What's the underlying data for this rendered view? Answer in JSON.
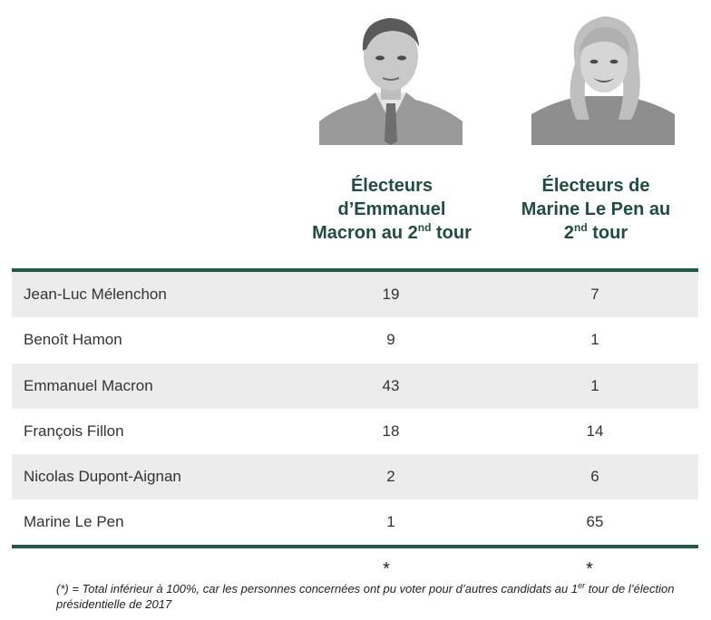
{
  "chart_data": {
    "type": "table",
    "columns": [
      {
        "line1": "Électeurs",
        "line2": "d’Emmanuel",
        "line3_a": "Macron au 2",
        "line3_sup": "nd",
        "line3_b": " tour"
      },
      {
        "line1": "Électeurs de",
        "line2": "Marine Le Pen au",
        "line3_a": "2",
        "line3_sup": "nd",
        "line3_b": " tour"
      }
    ],
    "rows": [
      {
        "name": "Jean-Luc Mélenchon",
        "macron": "19",
        "lepen": "7"
      },
      {
        "name": "Benoît Hamon",
        "macron": "9",
        "lepen": "1"
      },
      {
        "name": "Emmanuel Macron",
        "macron": "43",
        "lepen": "1"
      },
      {
        "name": "François Fillon",
        "macron": "18",
        "lepen": "14"
      },
      {
        "name": "Nicolas Dupont-Aignan",
        "macron": "2",
        "lepen": "6"
      },
      {
        "name": "Marine Le Pen",
        "macron": "1",
        "lepen": "65"
      }
    ],
    "totals": [
      "*",
      "*"
    ]
  },
  "footnote": {
    "part1": "(*) = Total inférieur à 100%, car les personnes concernées ont pu voter pour d’autres candidats au 1",
    "sup": "er",
    "part2": " tour de l’élection présidentielle de 2017"
  },
  "colors": {
    "header": "#1f4d44",
    "rule": "#1f5a48",
    "stripe": "#ececec"
  }
}
